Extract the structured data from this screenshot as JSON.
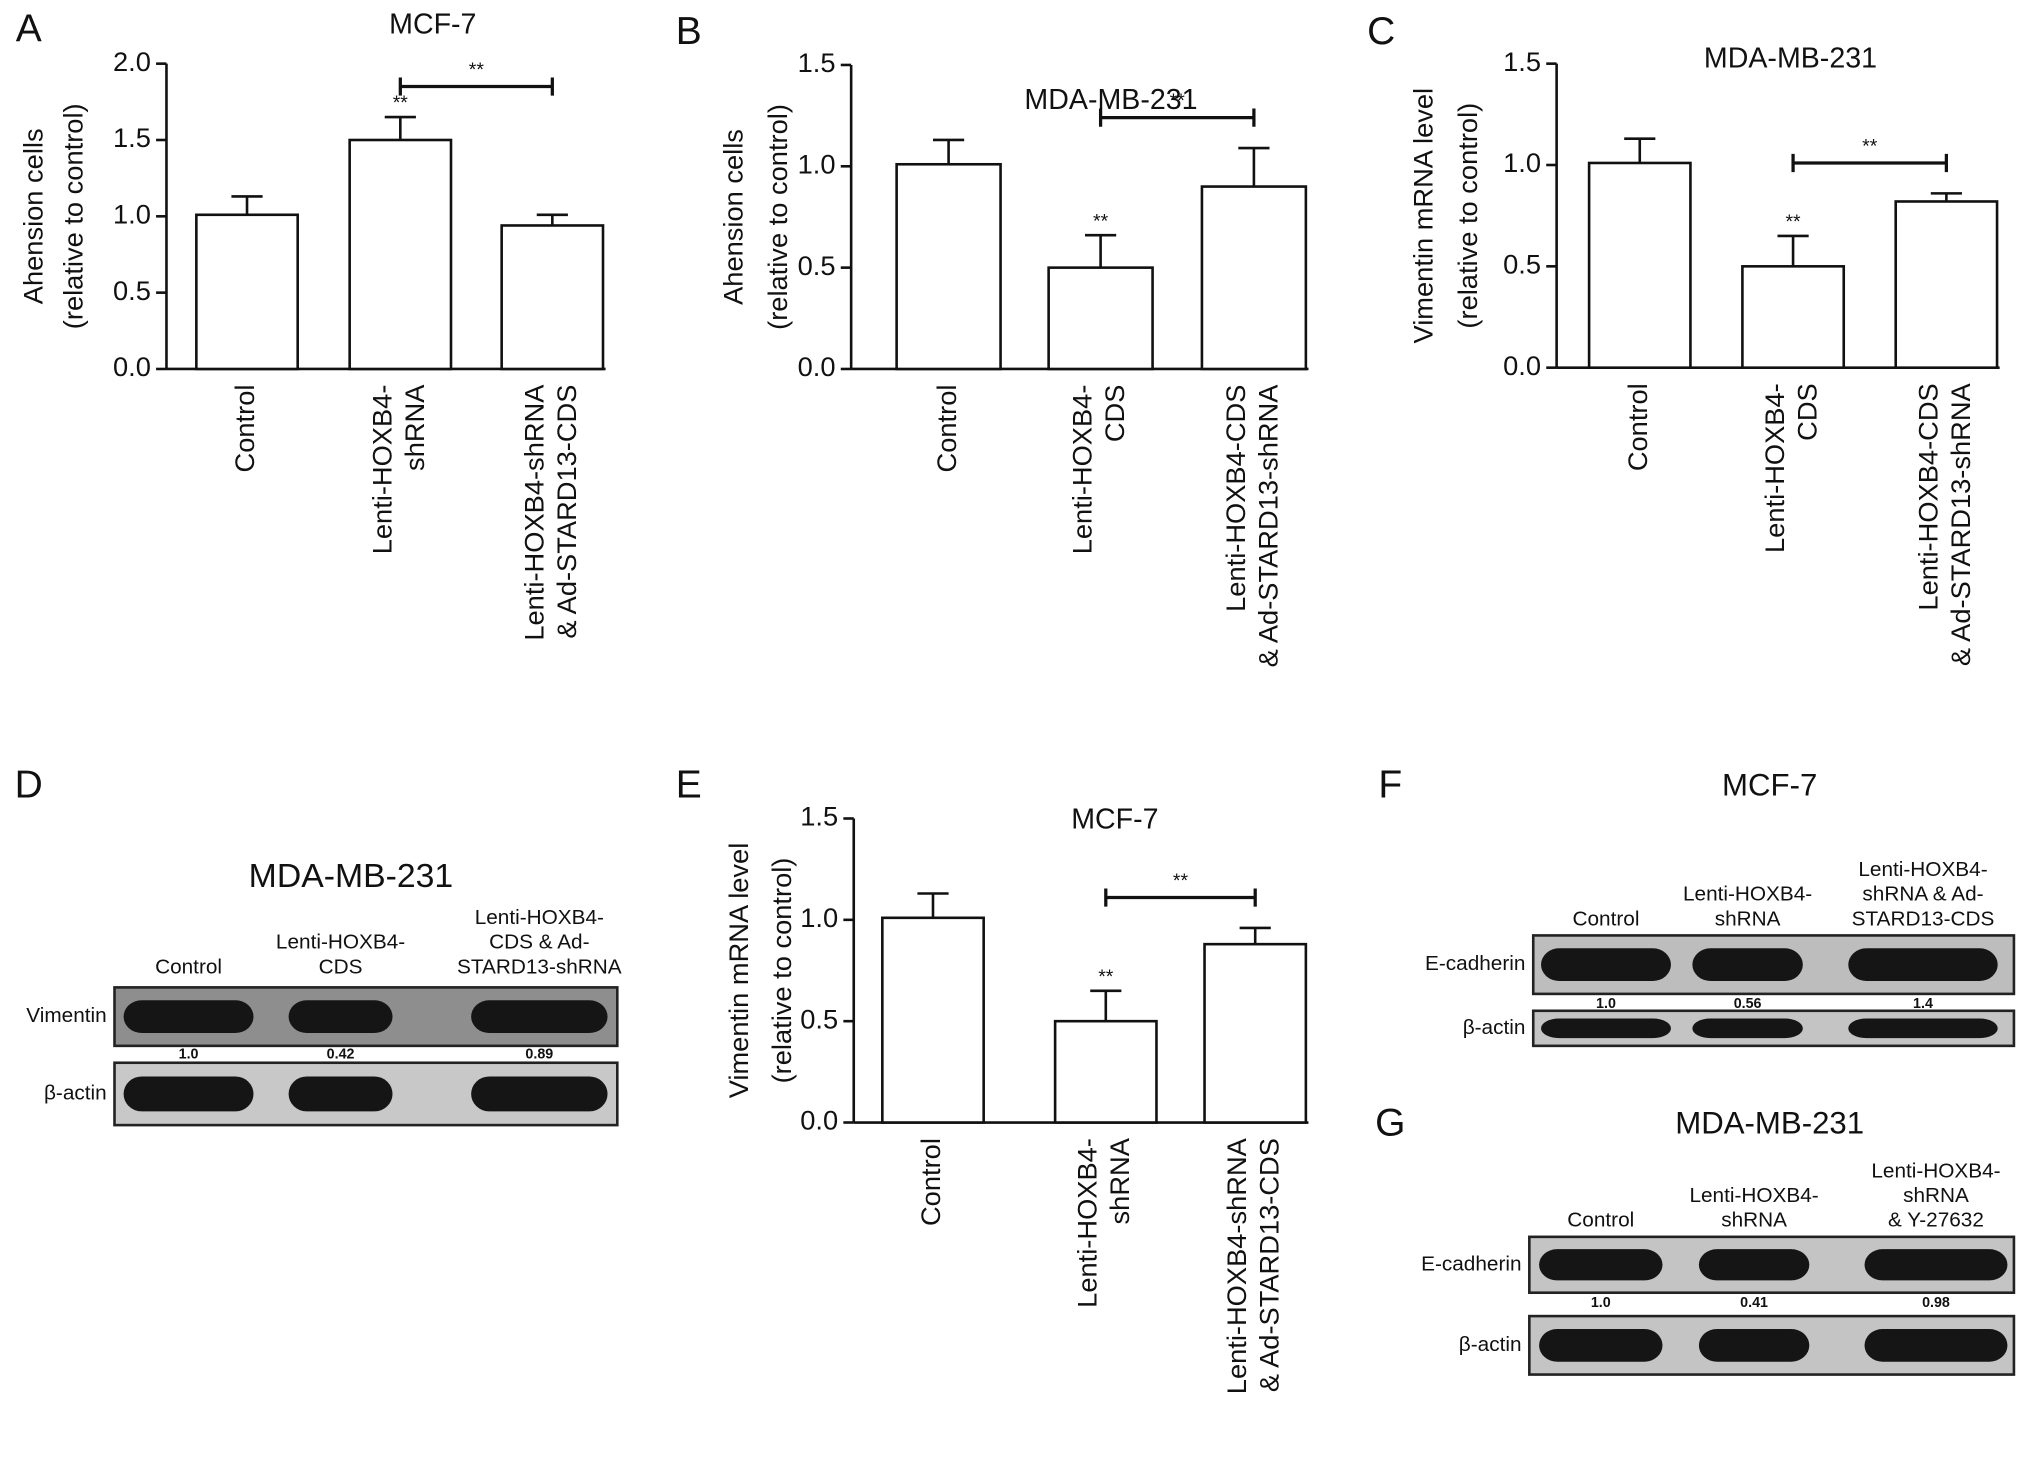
{
  "chart_data": [
    {
      "type": "bar",
      "panel": "A",
      "title": "MCF-7",
      "ylabel": [
        "Ahension cells",
        "(relative to control)"
      ],
      "categories": [
        [
          "Control"
        ],
        [
          "Lenti-HOXB4-",
          "shRNA"
        ],
        [
          "Lenti-HOXB4-shRNA",
          "& Ad-STARD13-CDS"
        ]
      ],
      "values": [
        1.01,
        1.5,
        0.94
      ],
      "errors": [
        0.12,
        0.15,
        0.07
      ],
      "markers": [
        null,
        "**",
        null
      ],
      "bracket_label": "**",
      "color": "#ffffff",
      "ylim": [
        0,
        2
      ],
      "yticks": [
        {
          "value": 0,
          "label": "0.0"
        },
        {
          "value": 0.5,
          "label": "0.5"
        },
        {
          "value": 1,
          "label": "1.0"
        },
        {
          "value": 1.5,
          "label": "1.5"
        },
        {
          "value": 2,
          "label": "2.0"
        }
      ]
    },
    {
      "type": "bar",
      "panel": "B",
      "title": "MDA-MB-231",
      "ylabel": [
        "Ahension cells",
        "(relative to control)"
      ],
      "categories": [
        [
          "Control"
        ],
        [
          "Lenti-HOXB4-",
          "CDS"
        ],
        [
          "Lenti-HOXB4-CDS",
          "& Ad-STARD13-shRNA"
        ]
      ],
      "values": [
        1.01,
        0.5,
        0.9
      ],
      "errors": [
        0.12,
        0.16,
        0.19
      ],
      "markers": [
        null,
        "**",
        null
      ],
      "bracket_label": "**",
      "color": "#ffffff",
      "ylim": [
        0,
        1.5
      ],
      "yticks": [
        {
          "value": 0,
          "label": "0.0"
        },
        {
          "value": 0.5,
          "label": "0.5"
        },
        {
          "value": 1,
          "label": "1.0"
        },
        {
          "value": 1.5,
          "label": "1.5"
        }
      ]
    },
    {
      "type": "bar",
      "panel": "C",
      "title": "MDA-MB-231",
      "ylabel": [
        "Vimentin mRNA level",
        "(relative to control)"
      ],
      "categories": [
        [
          "Control"
        ],
        [
          "Lenti-HOXB4-",
          "CDS"
        ],
        [
          "Lenti-HOXB4-CDS",
          "& Ad-STARD13-shRNA"
        ]
      ],
      "values": [
        1.01,
        0.5,
        0.82
      ],
      "errors": [
        0.12,
        0.15,
        0.04
      ],
      "markers": [
        null,
        "**",
        null
      ],
      "bracket_label": "**",
      "color": "#ffffff",
      "ylim": [
        0,
        1.5
      ],
      "yticks": [
        {
          "value": 0,
          "label": "0.0"
        },
        {
          "value": 0.5,
          "label": "0.5"
        },
        {
          "value": 1,
          "label": "1.0"
        },
        {
          "value": 1.5,
          "label": "1.5"
        }
      ]
    },
    {
      "type": "bar",
      "panel": "E",
      "title": "MCF-7",
      "ylabel": [
        "Vimentin mRNA level",
        "(relative to control)"
      ],
      "categories": [
        [
          "Control"
        ],
        [
          "Lenti-HOXB4-",
          "shRNA"
        ],
        [
          "Lenti-HOXB4-shRNA",
          "& Ad-STARD13-CDS"
        ]
      ],
      "values": [
        1.01,
        0.5,
        0.88
      ],
      "errors": [
        0.12,
        0.15,
        0.08
      ],
      "markers": [
        null,
        "**",
        null
      ],
      "bracket_label": "**",
      "color": "#ffffff",
      "ylim": [
        0,
        1.5
      ],
      "yticks": [
        {
          "value": 0,
          "label": "0.0"
        },
        {
          "value": 0.5,
          "label": "0.5"
        },
        {
          "value": 1,
          "label": "1.0"
        },
        {
          "value": 1.5,
          "label": "1.5"
        }
      ]
    }
  ],
  "blots": [
    {
      "panel": "D",
      "title": "MDA-MB-231",
      "lanes": [
        [
          "Control"
        ],
        [
          "Lenti-HOXB4-",
          "CDS"
        ],
        [
          "Lenti-HOXB4-",
          "CDS & Ad-",
          "STARD13-shRNA"
        ]
      ],
      "rows": [
        {
          "label": "Vimentin",
          "quant": [
            "1.0",
            "0.42",
            "0.89"
          ]
        },
        {
          "label": "β-actin"
        }
      ]
    },
    {
      "panel": "F",
      "title": "MCF-7",
      "lanes": [
        [
          "Control"
        ],
        [
          "Lenti-HOXB4-",
          "shRNA"
        ],
        [
          "Lenti-HOXB4-",
          "shRNA & Ad-",
          "STARD13-CDS"
        ]
      ],
      "rows": [
        {
          "label": "E-cadherin",
          "quant": [
            "1.0",
            "0.56",
            "1.4"
          ]
        },
        {
          "label": "β-actin"
        }
      ]
    },
    {
      "panel": "G",
      "title": "MDA-MB-231",
      "lanes": [
        [
          "Control"
        ],
        [
          "Lenti-HOXB4-",
          "shRNA"
        ],
        [
          "Lenti-HOXB4-",
          "shRNA",
          "& Y-27632"
        ]
      ],
      "rows": [
        {
          "label": "E-cadherin",
          "quant": [
            "1.0",
            "0.41",
            "0.98"
          ]
        },
        {
          "label": "β-actin"
        }
      ]
    }
  ]
}
